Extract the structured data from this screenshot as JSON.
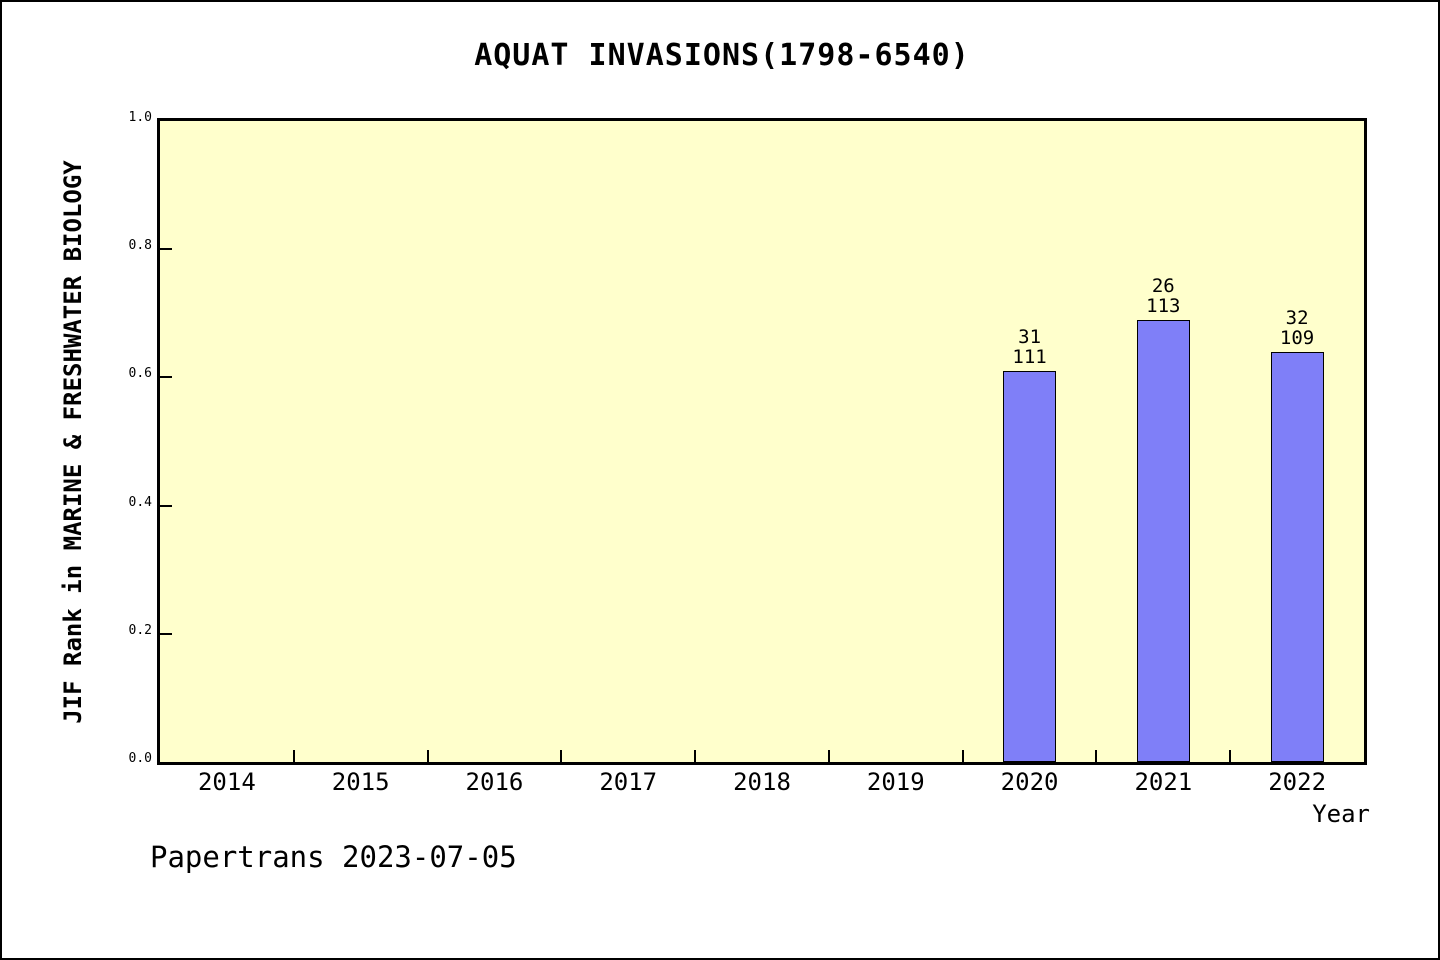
{
  "title": "AQUAT INVASIONS(1798-6540)",
  "footer": "Papertrans 2023-07-05",
  "chart_data": {
    "type": "bar",
    "title": "AQUAT INVASIONS(1798-6540)",
    "xlabel": "Year",
    "ylabel": "JIF Rank in MARINE & FRESHWATER BIOLOGY",
    "categories": [
      "2014",
      "2015",
      "2016",
      "2017",
      "2018",
      "2019",
      "2020",
      "2021",
      "2022"
    ],
    "values": [
      null,
      null,
      null,
      null,
      null,
      null,
      0.61,
      0.69,
      0.64
    ],
    "yticks": [
      "0.0",
      "0.2",
      "0.4",
      "0.6",
      "0.8",
      "1.0"
    ],
    "ylim": [
      0,
      1
    ],
    "grid": false,
    "legend": "none",
    "bars": [
      {
        "year": "2020",
        "value": 0.61,
        "rank": "31",
        "total": "111"
      },
      {
        "year": "2021",
        "value": 0.69,
        "rank": "26",
        "total": "113"
      },
      {
        "year": "2022",
        "value": 0.64,
        "rank": "32",
        "total": "109"
      }
    ],
    "colors": {
      "bar": "#7f7ff8",
      "bar_edge": "#000000",
      "plot_bg": "#ffffcc",
      "text": "#000000"
    }
  }
}
